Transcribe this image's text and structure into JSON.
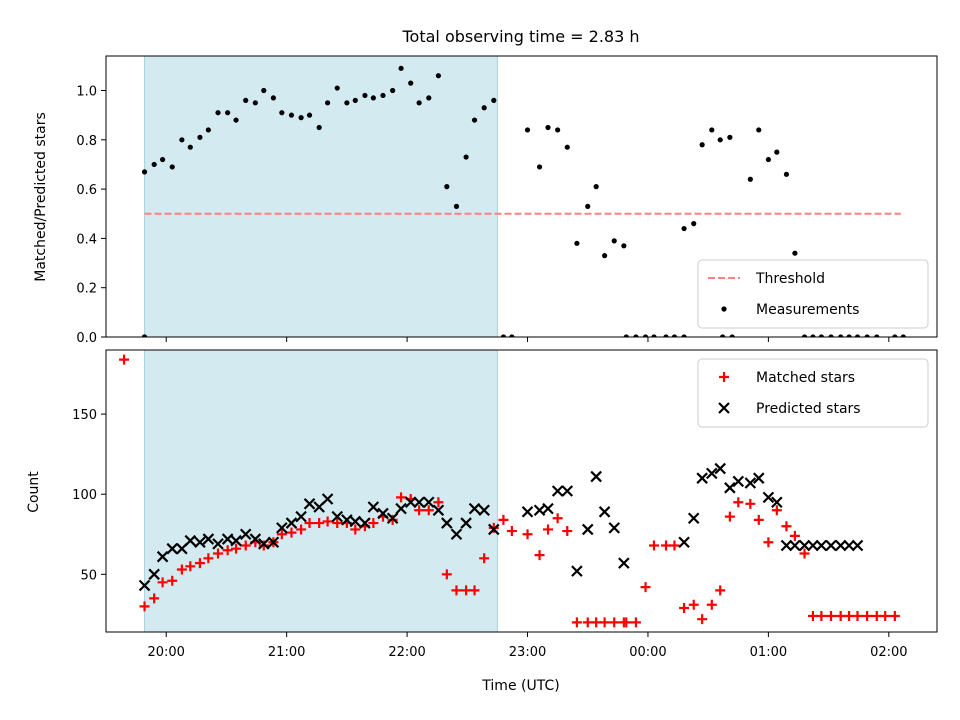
{
  "chart_data": [
    {
      "type": "scatter",
      "title": "Total observing time = 2.83 h",
      "xlabel": "",
      "ylabel": "Matched/Predicted stars",
      "ylim": [
        0,
        1.14
      ],
      "yticks": [
        "0.0",
        "0.2",
        "0.4",
        "0.6",
        "0.8",
        "1.0"
      ],
      "ytick_values": [
        0,
        0.2,
        0.4,
        0.6,
        0.8,
        1.0
      ],
      "xlim": [
        -0.5,
        6.4
      ],
      "shaded_interval": [
        -0.18,
        2.75
      ],
      "shade_color": "#d3eaf0",
      "threshold": {
        "name": "Threshold",
        "y": 0.5,
        "x": [
          -0.18,
          6.1
        ],
        "color": "#ff8080"
      },
      "series": [
        {
          "name": "Measurements",
          "color": "#000000",
          "marker": "dot",
          "x": [
            -0.18,
            -0.1,
            -0.03,
            0.05,
            0.13,
            0.2,
            0.28,
            0.35,
            0.43,
            0.51,
            0.58,
            0.66,
            0.74,
            0.81,
            0.89,
            0.96,
            1.04,
            1.12,
            1.19,
            1.27,
            1.34,
            1.42,
            1.5,
            1.57,
            1.65,
            1.72,
            1.8,
            1.88,
            1.95,
            2.03,
            2.1,
            2.18,
            2.26,
            2.33,
            2.41,
            2.49,
            2.56,
            2.64,
            2.72,
            3.0,
            3.1,
            3.17,
            3.25,
            3.33,
            3.41,
            3.5,
            3.57,
            3.64,
            3.72,
            3.8,
            4.3,
            4.38,
            4.45,
            4.53,
            4.6,
            4.68,
            4.85,
            4.92,
            5.0,
            5.07,
            5.15,
            5.22,
            5.3,
            5.37,
            5.44,
            5.52,
            5.6,
            5.67,
            5.74,
            5.82,
            5.9,
            -0.18
          ],
          "y": [
            0.67,
            0.7,
            0.72,
            0.69,
            0.8,
            0.77,
            0.81,
            0.84,
            0.91,
            0.91,
            0.88,
            0.96,
            0.95,
            1.0,
            0.97,
            0.91,
            0.9,
            0.89,
            0.9,
            0.85,
            0.95,
            1.01,
            0.95,
            0.96,
            0.98,
            0.97,
            0.98,
            1.0,
            1.09,
            1.03,
            0.95,
            0.97,
            1.06,
            0.61,
            0.53,
            0.73,
            0.88,
            0.93,
            0.96,
            0.84,
            0.69,
            0.85,
            0.84,
            0.77,
            0.38,
            0.53,
            0.61,
            0.33,
            0.39,
            0.37,
            0.44,
            0.46,
            0.78,
            0.84,
            0.8,
            0.81,
            0.64,
            0.84,
            0.72,
            0.75,
            0.66,
            0.34,
            0.0,
            0.0,
            0.0,
            0.0,
            0.0,
            0.0,
            0.0,
            0.0,
            0.0,
            0.0
          ]
        }
      ],
      "zero_points_x": [
        -0.18,
        2.8,
        2.87,
        3.82,
        3.9,
        3.98,
        4.05,
        4.15,
        4.22,
        4.3,
        4.62,
        4.7,
        6.05,
        6.12
      ],
      "legend": [
        "Threshold",
        "Measurements"
      ],
      "legend_position": "lower-right"
    },
    {
      "type": "scatter",
      "title": "",
      "xlabel": "Time (UTC)",
      "ylabel": "Count",
      "ylim": [
        14,
        190
      ],
      "yticks": [
        "50",
        "100",
        "150"
      ],
      "ytick_values": [
        50,
        100,
        150
      ],
      "xlim": [
        -0.5,
        6.4
      ],
      "xticks": [
        "20:00",
        "21:00",
        "22:00",
        "23:00",
        "00:00",
        "01:00",
        "02:00"
      ],
      "xtick_values": [
        0,
        1,
        2,
        3,
        4,
        5,
        6
      ],
      "shaded_interval": [
        -0.18,
        2.75
      ],
      "shade_color": "#d3eaf0",
      "series": [
        {
          "name": "Matched stars",
          "color": "#ff0000",
          "marker": "plus",
          "x": [
            -0.18,
            -0.1,
            -0.03,
            0.05,
            0.13,
            0.2,
            0.28,
            0.35,
            0.43,
            0.51,
            0.58,
            0.66,
            0.74,
            0.81,
            0.89,
            0.96,
            1.04,
            1.12,
            1.19,
            1.27,
            1.34,
            1.42,
            1.5,
            1.57,
            1.65,
            1.72,
            1.8,
            1.88,
            1.95,
            2.03,
            2.1,
            2.18,
            2.26,
            2.33,
            2.41,
            2.49,
            2.56,
            2.64,
            2.72,
            2.8,
            2.87,
            3.0,
            3.1,
            3.17,
            3.25,
            3.33,
            3.41,
            3.5,
            3.57,
            3.64,
            3.72,
            3.8,
            3.82,
            3.9,
            3.98,
            4.05,
            4.15,
            4.22,
            4.3,
            4.38,
            4.45,
            4.53,
            4.6,
            4.68,
            4.75,
            4.85,
            4.92,
            5.0,
            5.07,
            5.15,
            5.22,
            5.3,
            5.37,
            5.44,
            5.52,
            5.6,
            5.67,
            5.74,
            5.82,
            5.9,
            5.97,
            6.05,
            -0.35
          ],
          "y": [
            30,
            35,
            45,
            46,
            53,
            55,
            57,
            60,
            63,
            65,
            66,
            68,
            70,
            68,
            70,
            75,
            76,
            78,
            82,
            82,
            83,
            82,
            82,
            78,
            80,
            82,
            86,
            84,
            98,
            97,
            90,
            90,
            95,
            50,
            40,
            40,
            40,
            60,
            79,
            84,
            77,
            75,
            62,
            78,
            85,
            77,
            20,
            20,
            20,
            20,
            20,
            20,
            20,
            20,
            42,
            68,
            68,
            68,
            29,
            31,
            22,
            31,
            40,
            86,
            95,
            94,
            84,
            70,
            90,
            80,
            74,
            63,
            24,
            24,
            24,
            24,
            24,
            24,
            24,
            24,
            24,
            24,
            184
          ]
        },
        {
          "name": "Predicted stars",
          "color": "#000000",
          "marker": "x",
          "x": [
            -0.18,
            -0.1,
            -0.03,
            0.05,
            0.13,
            0.2,
            0.28,
            0.35,
            0.43,
            0.51,
            0.58,
            0.66,
            0.74,
            0.81,
            0.89,
            0.96,
            1.04,
            1.12,
            1.19,
            1.27,
            1.34,
            1.42,
            1.5,
            1.57,
            1.65,
            1.72,
            1.8,
            1.88,
            1.95,
            2.03,
            2.1,
            2.18,
            2.26,
            2.33,
            2.41,
            2.49,
            2.56,
            2.64,
            2.72,
            3.0,
            3.1,
            3.17,
            3.25,
            3.33,
            3.41,
            3.5,
            3.57,
            3.64,
            3.72,
            3.8,
            4.3,
            4.38,
            4.45,
            4.53,
            4.6,
            4.68,
            4.75,
            4.85,
            4.92,
            5.0,
            5.07,
            5.15,
            5.22,
            5.3,
            5.37,
            5.44,
            5.52,
            5.6,
            5.67,
            5.74
          ],
          "y": [
            43,
            50,
            61,
            66,
            66,
            71,
            70,
            72,
            69,
            72,
            71,
            75,
            72,
            69,
            70,
            79,
            82,
            86,
            94,
            92,
            97,
            86,
            84,
            83,
            82,
            92,
            88,
            85,
            91,
            95,
            95,
            95,
            90,
            82,
            75,
            82,
            91,
            90,
            78,
            89,
            90,
            91,
            102,
            102,
            52,
            78,
            111,
            89,
            79,
            57,
            70,
            85,
            110,
            113,
            116,
            104,
            108,
            107,
            110,
            98,
            95,
            68,
            68,
            68,
            68,
            68,
            68,
            68,
            68,
            68
          ]
        }
      ],
      "legend": [
        "Matched stars",
        "Predicted stars"
      ],
      "legend_position": "upper-right"
    }
  ]
}
